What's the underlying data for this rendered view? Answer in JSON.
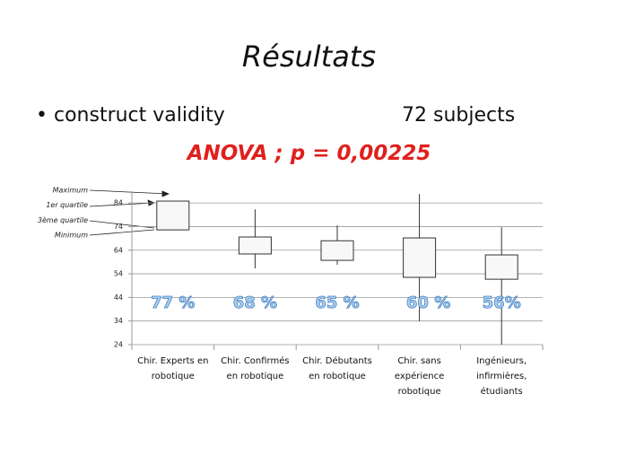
{
  "title": "Résultats",
  "bullet": "construct validity",
  "subjects": "72 subjects",
  "anova": "ANOVA ; p = 0,00225",
  "chart_data": {
    "type": "box",
    "categories": [
      "Chir. Experts en\nrobotique",
      "Chir. Confirmés\nen robotique",
      "Chir. Débutants\nen robotique",
      "Chir. sans\nexpérience\nrobotique",
      "Ingénieurs,\ninfirmières,\nétudiants"
    ],
    "boxes": [
      {
        "min": 72.6,
        "q1": 72.6,
        "q3": 84.8,
        "max": 84.8
      },
      {
        "min": 56.3,
        "q1": 62.4,
        "q3": 69.6,
        "max": 81.3
      },
      {
        "min": 57.8,
        "q1": 59.7,
        "q3": 68,
        "max": 74.5
      },
      {
        "min": 33.9,
        "q1": 52.5,
        "q3": 69.2,
        "max": 87.8
      },
      {
        "min": 24,
        "q1": 51.7,
        "q3": 62,
        "max": 73.7
      }
    ],
    "percent_labels": [
      "77 %",
      "68 %",
      "65 %",
      "60 %",
      "56%"
    ],
    "legend_labels": [
      "Maximum",
      "1er quartile",
      "3ème quartile",
      "Minimum"
    ],
    "color": "#f8f8f8",
    "ylim": [
      24,
      89
    ],
    "yticks": [
      24,
      34,
      44,
      54,
      64,
      74,
      84
    ],
    "grid": true
  }
}
